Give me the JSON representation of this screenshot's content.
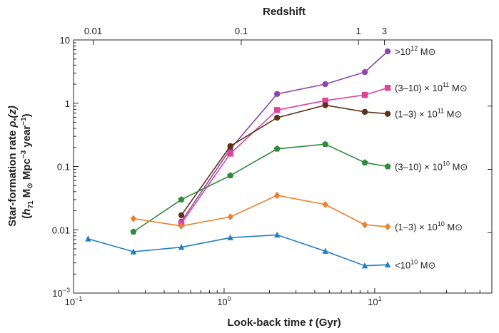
{
  "chart_data": {
    "type": "line",
    "title": "Redshift",
    "xlabel": "Look-back time t (Gyr)",
    "ylabel_line1": "Star-formation rate ρ*(z)",
    "ylabel_line2": "(h71 M⊙ Mpc−3 year−1)",
    "x_scale": "log",
    "y_scale": "log",
    "xlim": [
      0.1,
      60
    ],
    "ylim": [
      0.001,
      10
    ],
    "x_ticks": [
      {
        "value": 0.1,
        "base": "10",
        "exp": "−1"
      },
      {
        "value": 1,
        "base": "10",
        "exp": "0"
      },
      {
        "value": 10,
        "base": "10",
        "exp": "1"
      }
    ],
    "y_ticks": [
      {
        "value": 0.001,
        "label": "10",
        "exp": "−3"
      },
      {
        "value": 0.01,
        "label": "0.01"
      },
      {
        "value": 0.1,
        "label": "0.1"
      },
      {
        "value": 1,
        "label": "1"
      },
      {
        "value": 10,
        "label": "10"
      }
    ],
    "top_axis": {
      "label": "Redshift",
      "ticks": [
        {
          "label": "0.01",
          "lookback": 0.135
        },
        {
          "label": "0.1",
          "lookback": 1.3
        },
        {
          "label": "1",
          "lookback": 7.8
        },
        {
          "label": "3",
          "lookback": 11.6
        }
      ]
    },
    "grid": false,
    "series": [
      {
        "name": ">10¹² M⊙",
        "color": "#8e44ad",
        "marker": "circle",
        "x": [
          0.52,
          1.1,
          2.25,
          4.7,
          8.6,
          12.2
        ],
        "y": [
          0.0135,
          0.19,
          1.4,
          2.0,
          3.1,
          6.6
        ],
        "label_parts": {
          "main": ">10",
          "sup": "12",
          "unit": " M⊙"
        }
      },
      {
        "name": "(3–10) × 10¹¹ M⊙",
        "color": "#e0449a",
        "marker": "square",
        "x": [
          0.52,
          1.1,
          2.25,
          4.7,
          8.6,
          12.2
        ],
        "y": [
          0.0125,
          0.16,
          0.78,
          1.1,
          1.35,
          1.75
        ],
        "label_parts": {
          "main": "(3–10) × 10",
          "sup": "11",
          "unit": " M⊙"
        }
      },
      {
        "name": "(1–3) × 10¹¹ M⊙",
        "color": "#5c3317",
        "marker": "circle",
        "x": [
          0.52,
          1.1,
          2.25,
          4.7,
          8.6,
          12.2
        ],
        "y": [
          0.017,
          0.21,
          0.59,
          0.93,
          0.73,
          0.68
        ],
        "label_parts": {
          "main": "(1–3) × 10",
          "sup": "11",
          "unit": " M⊙"
        }
      },
      {
        "name": "(3–10) × 10¹⁰ M⊙",
        "color": "#2e8b3a",
        "marker": "pentagon",
        "x": [
          0.25,
          0.52,
          1.1,
          2.25,
          4.7,
          8.6,
          12.2
        ],
        "y": [
          0.0093,
          0.03,
          0.072,
          0.19,
          0.225,
          0.115,
          0.1
        ],
        "label_parts": {
          "main": "(3–10) × 10",
          "sup": "10",
          "unit": " M⊙"
        }
      },
      {
        "name": "(1–3) × 10¹⁰ M⊙",
        "color": "#f07f2a",
        "marker": "diamond",
        "x": [
          0.25,
          0.52,
          1.1,
          2.25,
          4.7,
          8.6,
          12.2
        ],
        "y": [
          0.015,
          0.0115,
          0.016,
          0.035,
          0.025,
          0.012,
          0.0112
        ],
        "label_parts": {
          "main": "(1–3) × 10",
          "sup": "10",
          "unit": " M⊙"
        }
      },
      {
        "name": "<10¹⁰ M⊙",
        "color": "#1f7fc4",
        "marker": "triangle",
        "x": [
          0.125,
          0.25,
          0.52,
          1.1,
          2.25,
          4.7,
          8.6,
          12.2
        ],
        "y": [
          0.0072,
          0.0045,
          0.0053,
          0.0075,
          0.0083,
          0.0046,
          0.0027,
          0.0028
        ],
        "label_parts": {
          "main": "<10",
          "sup": "10",
          "unit": " M⊙"
        }
      }
    ]
  }
}
